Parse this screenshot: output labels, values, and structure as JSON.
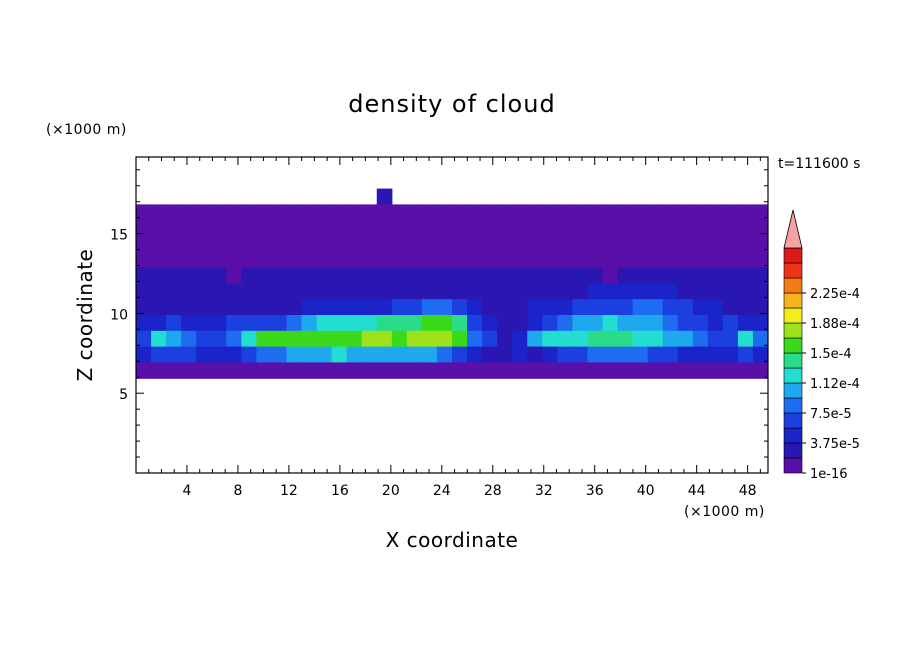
{
  "chart_data": {
    "type": "heatmap",
    "title": "density of cloud",
    "xlabel": "X coordinate",
    "ylabel": "Z coordinate",
    "x_unit_label": "(×1000 m)",
    "y_unit_label": "(×1000 m)",
    "time_label": "t=111600 s",
    "xlim": [
      0,
      49.6
    ],
    "ylim": [
      0,
      19.8
    ],
    "x_ticks": [
      4,
      8,
      12,
      16,
      20,
      24,
      28,
      32,
      36,
      40,
      44,
      48
    ],
    "x_tick_labels": [
      "4",
      "8",
      "12",
      "16",
      "20",
      "24",
      "28",
      "32",
      "36",
      "40",
      "44",
      "48"
    ],
    "y_ticks": [
      5,
      10,
      15
    ],
    "y_tick_labels": [
      "5",
      "10",
      "15"
    ],
    "colorbar": {
      "levels": [
        1e-16,
        1.875e-05,
        3.75e-05,
        5.625e-05,
        7.5e-05,
        9.375e-05,
        0.0001125,
        0.00013125,
        0.00015,
        0.00016875,
        0.0001875,
        0.00020625,
        0.000225,
        0.00024375
      ],
      "colors": [
        "#5a0fa8",
        "#2a16b0",
        "#1a24c8",
        "#1c3fe0",
        "#1e6cf0",
        "#1ea8ee",
        "#22ddd0",
        "#2adc8a",
        "#3ada1a",
        "#9ee21a",
        "#f2ee1a",
        "#f8b41a",
        "#f47a16",
        "#ee3418",
        "#dc1a1a",
        "#f4a2a2"
      ],
      "labels": [
        "1e-16",
        "3.75e-5",
        "7.5e-5",
        "1.12e-4",
        "1.5e-4",
        "1.88e-4",
        "2.25e-4"
      ],
      "extend": "max"
    },
    "field": {
      "description_units": "cloud density contour bands (class index 0-15, -1 = no cloud), sampled on regular grid",
      "x_range": [
        0,
        49.6
      ],
      "z_range": [
        0,
        19.8
      ],
      "nx": 42,
      "nz": 20,
      "rows_top_to_bottom": [
        "..........................................",
        "..........................................",
        "................1.........................",
        "000000000000000000000000000000000000000000",
        "000000000000000000000000000000000000000000",
        "000000000000000000000000000000000000000000",
        "000000000000000000000000000000000000000000",
        "111111011111111111111111111111101111111111",
        "111111111111111111111111111111222222111111",
        "111111111112222223344321112223333443322111",
        "223222333345666677788732112345565554332322",
        "365433468888888998999843125666777665543364",
        "233322234455565555554321121233444433222232",
        "000000000000000000000000000000000000000000",
        "..........................................",
        "..........................................",
        "..........................................",
        "..........................................",
        "..........................................",
        ".........................................."
      ]
    }
  }
}
